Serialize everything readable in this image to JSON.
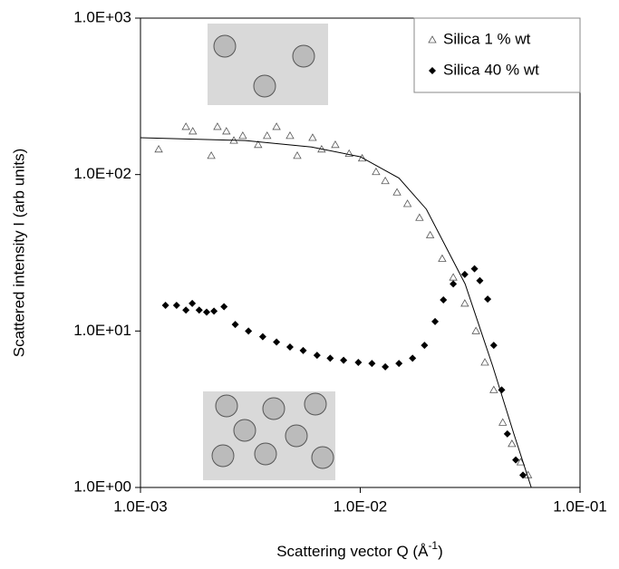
{
  "chart_data": {
    "type": "scatter",
    "log_x": true,
    "log_y": true,
    "xlabel": "Scattering vector Q (Å",
    "xlabel_sup": "-1",
    "xlabel_end": ")",
    "ylabel": "Scattered intensity I (arb units)",
    "xlim": [
      0.001,
      0.1
    ],
    "ylim": [
      1,
      1000
    ],
    "xticks": [
      {
        "value": 0.001,
        "label": "1.0E-03"
      },
      {
        "value": 0.01,
        "label": "1.0E-02"
      },
      {
        "value": 0.1,
        "label": "1.0E-01"
      }
    ],
    "yticks": [
      {
        "value": 1,
        "label": "1.0E+00"
      },
      {
        "value": 10,
        "label": "1.0E+01"
      },
      {
        "value": 100,
        "label": "1.0E+02"
      },
      {
        "value": 1000,
        "label": "1.0E+03"
      }
    ],
    "legend": "upper right",
    "series": [
      {
        "name": "Silica 1 % wt",
        "marker": "triangle",
        "color": "#555555",
        "x": [
          0.00121,
          0.00161,
          0.00173,
          0.0021,
          0.00224,
          0.00246,
          0.00266,
          0.00292,
          0.00343,
          0.00377,
          0.00416,
          0.00479,
          0.00517,
          0.00607,
          0.00667,
          0.0077,
          0.0089,
          0.0102,
          0.0118,
          0.013,
          0.0147,
          0.0164,
          0.0186,
          0.0208,
          0.0236,
          0.0265,
          0.0299,
          0.0336,
          0.0369,
          0.0405,
          0.0445,
          0.049,
          0.0537,
          0.058
        ],
        "values": [
          145,
          202,
          189,
          132,
          202,
          189,
          165,
          177,
          155,
          177,
          202,
          177,
          132,
          172,
          145,
          155,
          136,
          127,
          104,
          91,
          77,
          65,
          53,
          41,
          29,
          22,
          15,
          10,
          6.3,
          4.2,
          2.6,
          1.9,
          1.45,
          1.2
        ]
      },
      {
        "name": "Silica 40 % wt",
        "marker": "diamond",
        "color": "#000000",
        "x": [
          0.0013,
          0.00146,
          0.00161,
          0.00172,
          0.00185,
          0.002,
          0.00216,
          0.0024,
          0.0027,
          0.0031,
          0.0036,
          0.00416,
          0.00479,
          0.0055,
          0.00636,
          0.0073,
          0.0084,
          0.0098,
          0.0113,
          0.013,
          0.015,
          0.0173,
          0.0196,
          0.0219,
          0.0239,
          0.0265,
          0.0299,
          0.0331,
          0.035,
          0.038,
          0.0405,
          0.044,
          0.0467,
          0.051,
          0.055
        ],
        "values": [
          14.6,
          14.6,
          13.6,
          15,
          13.6,
          13.2,
          13.4,
          14.3,
          11,
          10,
          9.2,
          8.5,
          7.9,
          7.5,
          7,
          6.7,
          6.5,
          6.3,
          6.2,
          5.9,
          6.2,
          6.7,
          8.1,
          11.5,
          15.8,
          20,
          23,
          25,
          21,
          16,
          8.1,
          4.2,
          2.2,
          1.5,
          1.2
        ]
      },
      {
        "marker": "line",
        "color": "#000000",
        "x": [
          0.001,
          0.003,
          0.006,
          0.01,
          0.015,
          0.02,
          0.03,
          0.04,
          0.05,
          0.06
        ],
        "values": [
          172,
          165,
          150,
          130,
          95,
          60,
          20,
          6,
          2.2,
          1.0
        ]
      }
    ]
  }
}
